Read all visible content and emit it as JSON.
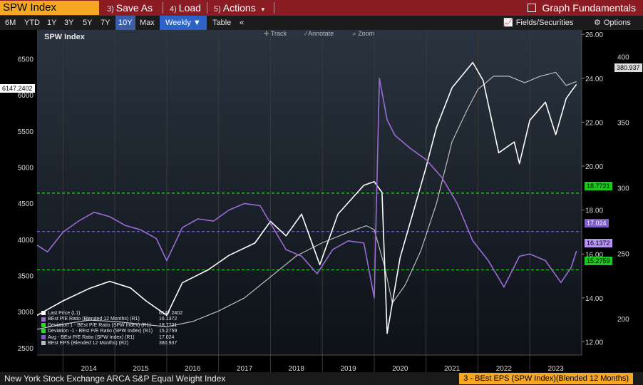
{
  "app": {
    "ticker": "SPW Index",
    "save_as": "Save As",
    "save_as_num": "3)",
    "load": "Load",
    "load_num": "4)",
    "actions": "Actions",
    "actions_num": "5)",
    "graph_fundamentals": "Graph Fundamentals"
  },
  "toolbar": {
    "ranges": [
      "6M",
      "YTD",
      "1Y",
      "3Y",
      "5Y",
      "7Y",
      "10Y",
      "Max"
    ],
    "active_range": "10Y",
    "frequency": "Weekly ▼",
    "table": "Table",
    "collapse": "«",
    "fields": "Fields/Securities",
    "options": "Options"
  },
  "chart_tools": {
    "track": "Track",
    "annotate": "Annotate",
    "zoom": "Zoom"
  },
  "chart_data": {
    "type": "line",
    "title": "SPW Index",
    "x_ticks": [
      "2014",
      "2015",
      "2016",
      "2017",
      "2018",
      "2019",
      "2020",
      "2021",
      "2022",
      "2023"
    ],
    "left_axis_ticks": [
      2500,
      3000,
      3500,
      4000,
      4500,
      5000,
      5500,
      6000,
      6500
    ],
    "right_axis_pe_ticks": [
      "12.00",
      "14.00",
      "16.00",
      "18.00",
      "20.00",
      "22.00",
      "24.00",
      "26.00"
    ],
    "right_axis_eps_ticks": [
      200,
      250,
      300,
      350,
      400
    ],
    "ylim_left": [
      2400,
      6900
    ],
    "ylim_pe": [
      11.4,
      26.2
    ],
    "ylim_eps": [
      172.4,
      420.3
    ],
    "last_price_tag": "6147.2402",
    "series": [
      {
        "name": "Last Price",
        "axis": "L1",
        "color": "#ffffff",
        "x": [
          2013.5,
          2014.0,
          2014.5,
          2014.9,
          2015.3,
          2015.6,
          2016.0,
          2016.3,
          2016.8,
          2017.2,
          2017.7,
          2018.0,
          2018.3,
          2018.6,
          2018.95,
          2019.3,
          2019.8,
          2020.0,
          2020.15,
          2020.25,
          2020.5,
          2020.8,
          2021.0,
          2021.2,
          2021.5,
          2021.9,
          2022.1,
          2022.4,
          2022.7,
          2022.8,
          2023.0,
          2023.3,
          2023.5,
          2023.7,
          2023.8,
          2023.9
        ],
        "values": [
          2950,
          3150,
          3320,
          3420,
          3330,
          3150,
          2950,
          3400,
          3580,
          3780,
          3950,
          4250,
          4050,
          4350,
          3650,
          4350,
          4750,
          4800,
          4650,
          2700,
          3750,
          4500,
          5000,
          5550,
          6100,
          6450,
          6200,
          5200,
          5350,
          5050,
          5650,
          5900,
          5450,
          5950,
          6050,
          6147
        ]
      },
      {
        "name": "BEst P/E Ratio (Blended 12 Months)",
        "axis": "R1",
        "color": "#9b6bd6",
        "x": [
          2013.5,
          2013.7,
          2014.0,
          2014.3,
          2014.6,
          2014.9,
          2015.2,
          2015.5,
          2015.8,
          2016.0,
          2016.3,
          2016.6,
          2016.9,
          2017.2,
          2017.5,
          2017.8,
          2018.0,
          2018.3,
          2018.6,
          2018.9,
          2019.2,
          2019.5,
          2019.8,
          2020.0,
          2020.1,
          2020.25,
          2020.4,
          2020.7,
          2021.0,
          2021.3,
          2021.6,
          2021.9,
          2022.2,
          2022.5,
          2022.8,
          2023.0,
          2023.3,
          2023.6,
          2023.8,
          2023.9
        ],
        "values": [
          16.4,
          16.1,
          17.0,
          17.5,
          17.9,
          17.7,
          17.3,
          17.1,
          16.7,
          15.7,
          17.2,
          17.6,
          17.5,
          18.0,
          18.3,
          18.2,
          17.4,
          16.2,
          15.9,
          15.1,
          16.2,
          16.6,
          16.5,
          14.0,
          24.0,
          22.1,
          21.4,
          20.8,
          20.3,
          19.5,
          18.3,
          16.6,
          15.7,
          14.5,
          15.9,
          16.0,
          15.7,
          14.7,
          15.4,
          16.14
        ]
      },
      {
        "name": "BEst EPS (Blended 12 Months)",
        "axis": "R2",
        "color": "#bdbdbd",
        "x": [
          2013.5,
          2014.0,
          2014.5,
          2015.0,
          2015.5,
          2016.0,
          2016.5,
          2017.0,
          2017.5,
          2018.0,
          2018.5,
          2019.0,
          2019.5,
          2019.85,
          2020.0,
          2020.2,
          2020.35,
          2020.6,
          2020.9,
          2021.2,
          2021.5,
          2021.8,
          2022.0,
          2022.3,
          2022.6,
          2022.9,
          2023.2,
          2023.5,
          2023.7,
          2023.9
        ],
        "values": [
          192,
          196,
          199,
          198,
          196,
          194,
          198,
          206,
          216,
          232,
          248,
          258,
          266,
          271,
          268,
          240,
          212,
          226,
          252,
          288,
          335,
          360,
          375,
          385,
          385,
          380,
          385,
          388,
          378,
          381
        ]
      }
    ],
    "reference_lines": [
      {
        "name": "Deviation 1 - BEst P/E Ratio (SPW Index)",
        "value": 18.7721,
        "color": "#2bd52b",
        "dash": true
      },
      {
        "name": "Avg - BEst P/E Ratio (SPW Index)",
        "value": 17.024,
        "color": "#7d5cc7",
        "dash": true
      },
      {
        "name": "Deviation -1 - BEst P/E Ratio (SPW Index)",
        "value": 15.2759,
        "color": "#2bd52b",
        "dash": true
      }
    ]
  },
  "legend": [
    {
      "label": "Last Price  (L1)",
      "value": "6147.2402",
      "color": "#ffffff"
    },
    {
      "label": "BEst P/E Ratio (Blended 12 Months) (R1)",
      "value": "16.1372",
      "color": "#9b6bd6"
    },
    {
      "label": "Deviation 1 - BEst P/E Ratio (SPW Index) (R1)",
      "value": "18.7721",
      "color": "#2bd52b"
    },
    {
      "label": "Deviation  -1 - BEst P/E Ratio (SPW Index) (R1)",
      "value": "15.2759",
      "color": "#2bd52b"
    },
    {
      "label": "Avg - BEst P/E Ratio (SPW Index) (R1)",
      "value": "17.024",
      "color": "#7d5cc7"
    },
    {
      "label": "BEst EPS (Blended 12 Months) (R2)",
      "value": "380.937",
      "color": "#bdbdbd"
    }
  ],
  "value_tags": {
    "eps": "380.937",
    "dev1": "18.7721",
    "avg": "17.024",
    "pe": "16.1372",
    "devm1": "15.2759"
  },
  "status": {
    "description": "New York Stock Exchange ARCA S&P Equal Weight Index",
    "selected_series": "3 - BEst EPS (SPW Index)(Blended 12 Months)"
  },
  "colors": {
    "command_bar": "#8b1c24",
    "ticker_box": "#f5a623",
    "chart_bg_top": "#2a3440",
    "chart_bg_bottom": "#0d1117"
  }
}
